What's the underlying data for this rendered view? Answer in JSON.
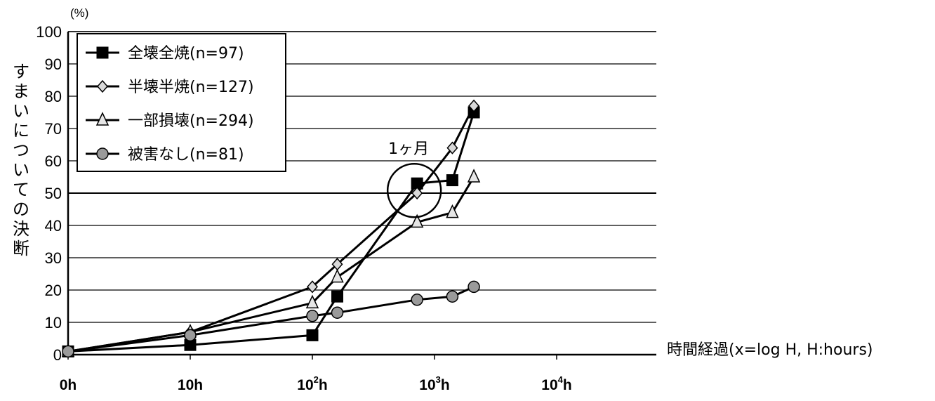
{
  "chart_data": {
    "type": "line",
    "y_unit": "(%)",
    "ylabel": "すまいについての決断",
    "xlabel": "時間経過(x=log H, H:hours)",
    "ylim": [
      0,
      100
    ],
    "y_ticks": [
      "0",
      "10",
      "20",
      "30",
      "40",
      "50",
      "60",
      "70",
      "80",
      "90",
      "100"
    ],
    "x_scale": "log",
    "x_ticks": [
      {
        "base": "0h",
        "sup": "",
        "unit": "",
        "value": 1
      },
      {
        "base": "10h",
        "sup": "",
        "unit": "",
        "value": 10
      },
      {
        "base": "10",
        "sup": "2",
        "unit": "h",
        "value": 100
      },
      {
        "base": "10",
        "sup": "3",
        "unit": "h",
        "value": 1000
      },
      {
        "base": "10",
        "sup": "4",
        "unit": "h",
        "value": 10000
      }
    ],
    "grid": true,
    "legend_position": "top-left",
    "series": [
      {
        "name": "全壊全焼(n=97)",
        "marker": "square",
        "x": [
          1,
          10,
          100,
          160,
          720,
          1400,
          2100
        ],
        "y": [
          1,
          3,
          6,
          18,
          53,
          54,
          75
        ]
      },
      {
        "name": "半壊半焼(n=127)",
        "marker": "diamond",
        "x": [
          1,
          10,
          100,
          160,
          720,
          1400,
          2100
        ],
        "y": [
          1,
          7,
          21,
          28,
          50,
          64,
          77
        ]
      },
      {
        "name": "一部損壊(n=294)",
        "marker": "triangle",
        "x": [
          1,
          10,
          100,
          160,
          720,
          1400,
          2100
        ],
        "y": [
          1,
          7,
          16,
          24,
          41,
          44,
          55
        ]
      },
      {
        "name": "被害なし(n=81)",
        "marker": "circle",
        "x": [
          1,
          10,
          100,
          160,
          720,
          1400,
          2100
        ],
        "y": [
          1,
          6,
          12,
          13,
          17,
          18,
          21
        ]
      }
    ],
    "annotations": [
      {
        "text": "1ヶ月",
        "x": 720,
        "y": 53
      }
    ]
  }
}
